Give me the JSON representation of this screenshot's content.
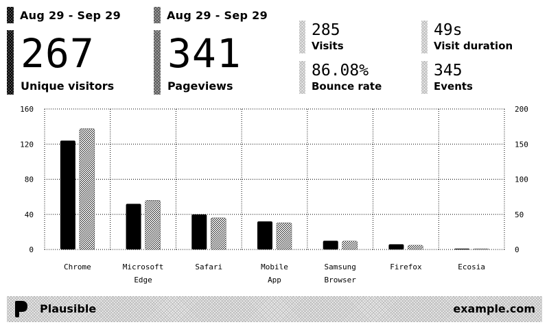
{
  "current_period": {
    "range": "Aug 29 - Sep 29"
  },
  "previous_period": {
    "range": "Aug 29 - Sep 29"
  },
  "metrics": {
    "unique_visitors": {
      "value": "267",
      "label": "Unique visitors"
    },
    "pageviews": {
      "value": "341",
      "label": "Pageviews"
    },
    "visits": {
      "value": "285",
      "label": "Visits"
    },
    "visit_duration": {
      "value": "49s",
      "label": "Visit duration"
    },
    "bounce_rate": {
      "value": "86.08%",
      "label": "Bounce rate"
    },
    "events": {
      "value": "345",
      "label": "Events"
    }
  },
  "chart_data": {
    "type": "bar",
    "categories": [
      [
        "Chrome"
      ],
      [
        "Microsoft",
        "Edge"
      ],
      [
        "Safari"
      ],
      [
        "Mobile",
        "App"
      ],
      [
        "Samsung",
        "Browser"
      ],
      [
        "Firefox"
      ],
      [
        "Ecosia"
      ]
    ],
    "series": [
      {
        "values": [
          124,
          52,
          40,
          32,
          10,
          6,
          1
        ],
        "axis": "left",
        "style": "black"
      },
      {
        "values": [
          172,
          70,
          45,
          38,
          12,
          6,
          1
        ],
        "axis": "right",
        "style": "dithered"
      }
    ],
    "y_left": {
      "ticks": [
        "0",
        "40",
        "80",
        "120",
        "160"
      ],
      "range": [
        0,
        160
      ]
    },
    "y_right": {
      "ticks": [
        "0",
        "50",
        "100",
        "150",
        "200"
      ],
      "range": [
        0,
        200
      ]
    },
    "grid": true
  },
  "footer": {
    "brand": "Plausible",
    "domain": "example.com",
    "logo_icon": "plausible-logo-icon"
  },
  "colors": {
    "ink": "#000000",
    "paper": "#ffffff"
  }
}
